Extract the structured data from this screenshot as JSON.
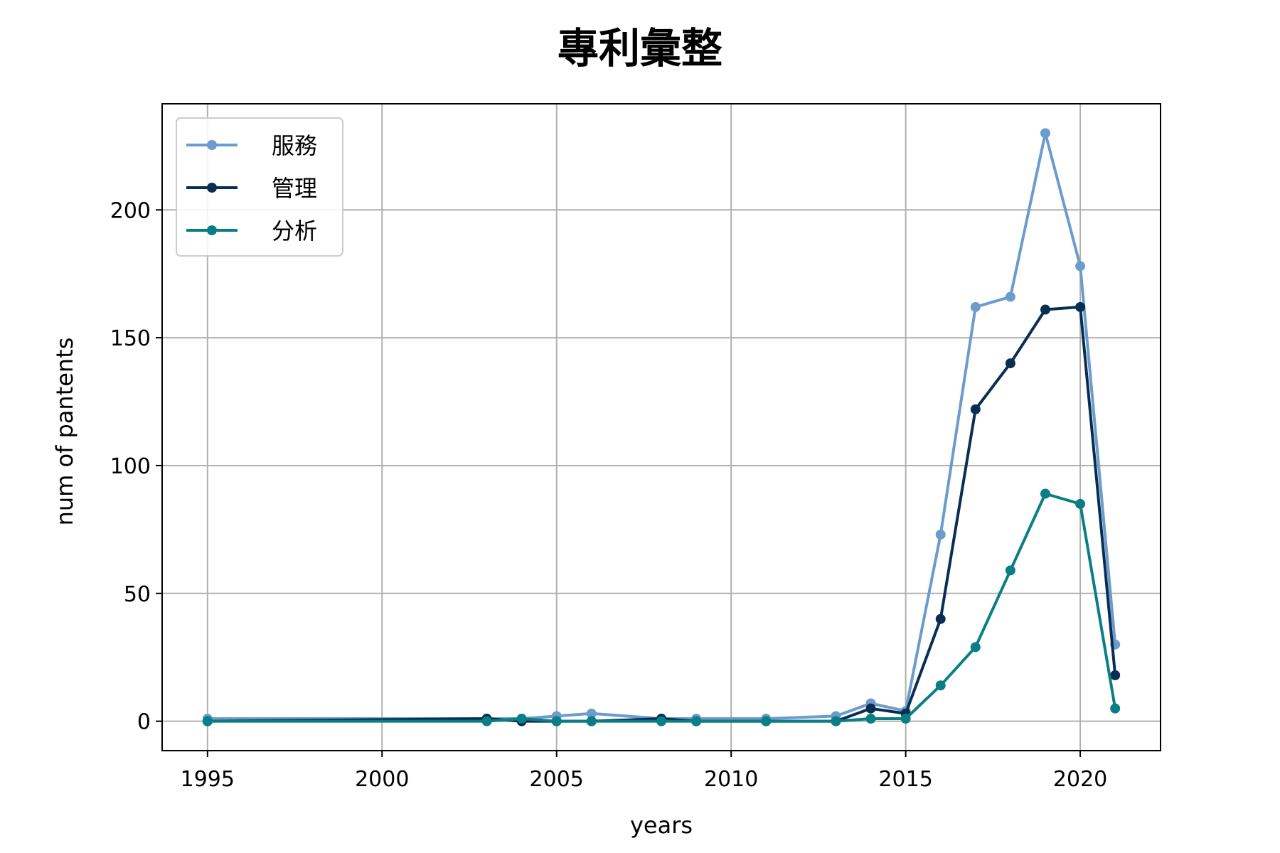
{
  "chart_data": {
    "type": "line",
    "title": "專利彙整",
    "xlabel": "years",
    "ylabel": "num of pantents",
    "xlim": [
      1993.7,
      2022.3
    ],
    "ylim": [
      -11.5,
      241.5
    ],
    "xticks": [
      1995,
      2000,
      2005,
      2010,
      2015,
      2020
    ],
    "yticks": [
      0,
      50,
      100,
      150,
      200
    ],
    "grid": true,
    "legend_position": "upper-left",
    "series": [
      {
        "name": "服務",
        "color": "#6b9ccc",
        "x": [
          1995,
          2003,
          2004,
          2005,
          2006,
          2008,
          2009,
          2011,
          2013,
          2014,
          2015,
          2016,
          2017,
          2018,
          2019,
          2020,
          2021
        ],
        "y": [
          1,
          1,
          1,
          2,
          3,
          1,
          1,
          1,
          2,
          7,
          4,
          73,
          162,
          166,
          230,
          178,
          30
        ]
      },
      {
        "name": "管理",
        "color": "#0a2e52",
        "x": [
          1995,
          2003,
          2004,
          2005,
          2006,
          2008,
          2009,
          2011,
          2013,
          2014,
          2015,
          2016,
          2017,
          2018,
          2019,
          2020,
          2021
        ],
        "y": [
          0,
          1,
          0,
          0,
          0,
          1,
          0,
          0,
          0,
          5,
          3,
          40,
          122,
          140,
          161,
          162,
          18
        ]
      },
      {
        "name": "分析",
        "color": "#0a7e86",
        "x": [
          1995,
          2003,
          2004,
          2005,
          2006,
          2008,
          2009,
          2011,
          2013,
          2014,
          2015,
          2016,
          2017,
          2018,
          2019,
          2020,
          2021
        ],
        "y": [
          0,
          0,
          1,
          0,
          0,
          0,
          0,
          0,
          0,
          1,
          1,
          14,
          29,
          59,
          89,
          85,
          5
        ]
      }
    ]
  }
}
